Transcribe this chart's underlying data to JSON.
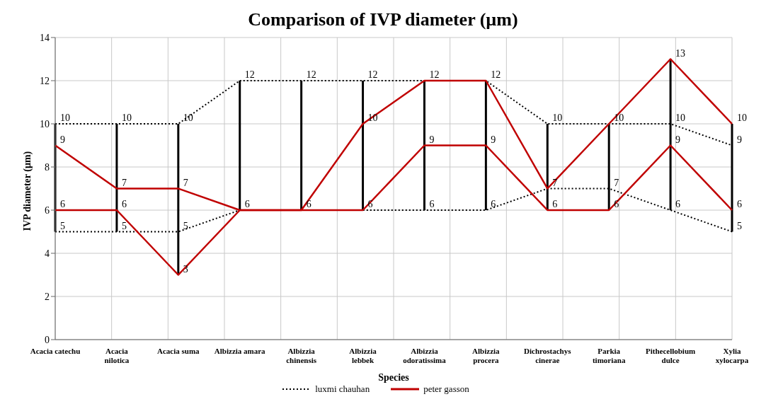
{
  "chart_data": {
    "type": "line",
    "title": "Comparison of IVP diameter (µm)",
    "xlabel": "Species",
    "ylabel": "IVP diameter (µm)",
    "categories": [
      "Acacia catechu",
      "Acacia nilotica",
      "Acacia suma",
      "Albizzia amara",
      "Albizzia chinensis",
      "Albizzia lebbek",
      "Albizzia odoratissima",
      "Albizzia procera",
      "Dichrostachys cinerae",
      "Parkia timoriana",
      "Pithecellobium dulce",
      "Xylia xylocarpa"
    ],
    "series": [
      {
        "name": "luxmi chauhan",
        "color": "#000000",
        "line_style": "dotted",
        "values": [
          10,
          10,
          10,
          12,
          12,
          12,
          12,
          12,
          10,
          10,
          10,
          9
        ]
      },
      {
        "color": "#000000",
        "line_style": "dotted",
        "values": [
          5,
          5,
          5,
          6,
          6,
          6,
          6,
          6,
          7,
          7,
          6,
          5
        ]
      },
      {
        "name": "peter gasson",
        "color": "#c00000",
        "line_style": "solid",
        "values": [
          9,
          7,
          7,
          6,
          6,
          10,
          12,
          12,
          7,
          10,
          13,
          10
        ],
        "value_labels": [
          "9",
          "7",
          "7",
          null,
          null,
          "10",
          null,
          null,
          null,
          null,
          "13",
          "10"
        ]
      },
      {
        "color": "#c00000",
        "line_style": "solid",
        "values": [
          6,
          6,
          3,
          6,
          6,
          6,
          9,
          9,
          6,
          6,
          9,
          6
        ],
        "value_labels": [
          "6",
          "6",
          "3",
          null,
          null,
          null,
          "9",
          "9",
          "6",
          "6",
          "9",
          "6"
        ]
      }
    ],
    "ylim": [
      0,
      14
    ],
    "yticks": [
      0,
      2,
      4,
      6,
      8,
      10,
      12,
      14
    ],
    "grid": true,
    "legend": "bottom",
    "marker": "none",
    "data_labels": true
  }
}
